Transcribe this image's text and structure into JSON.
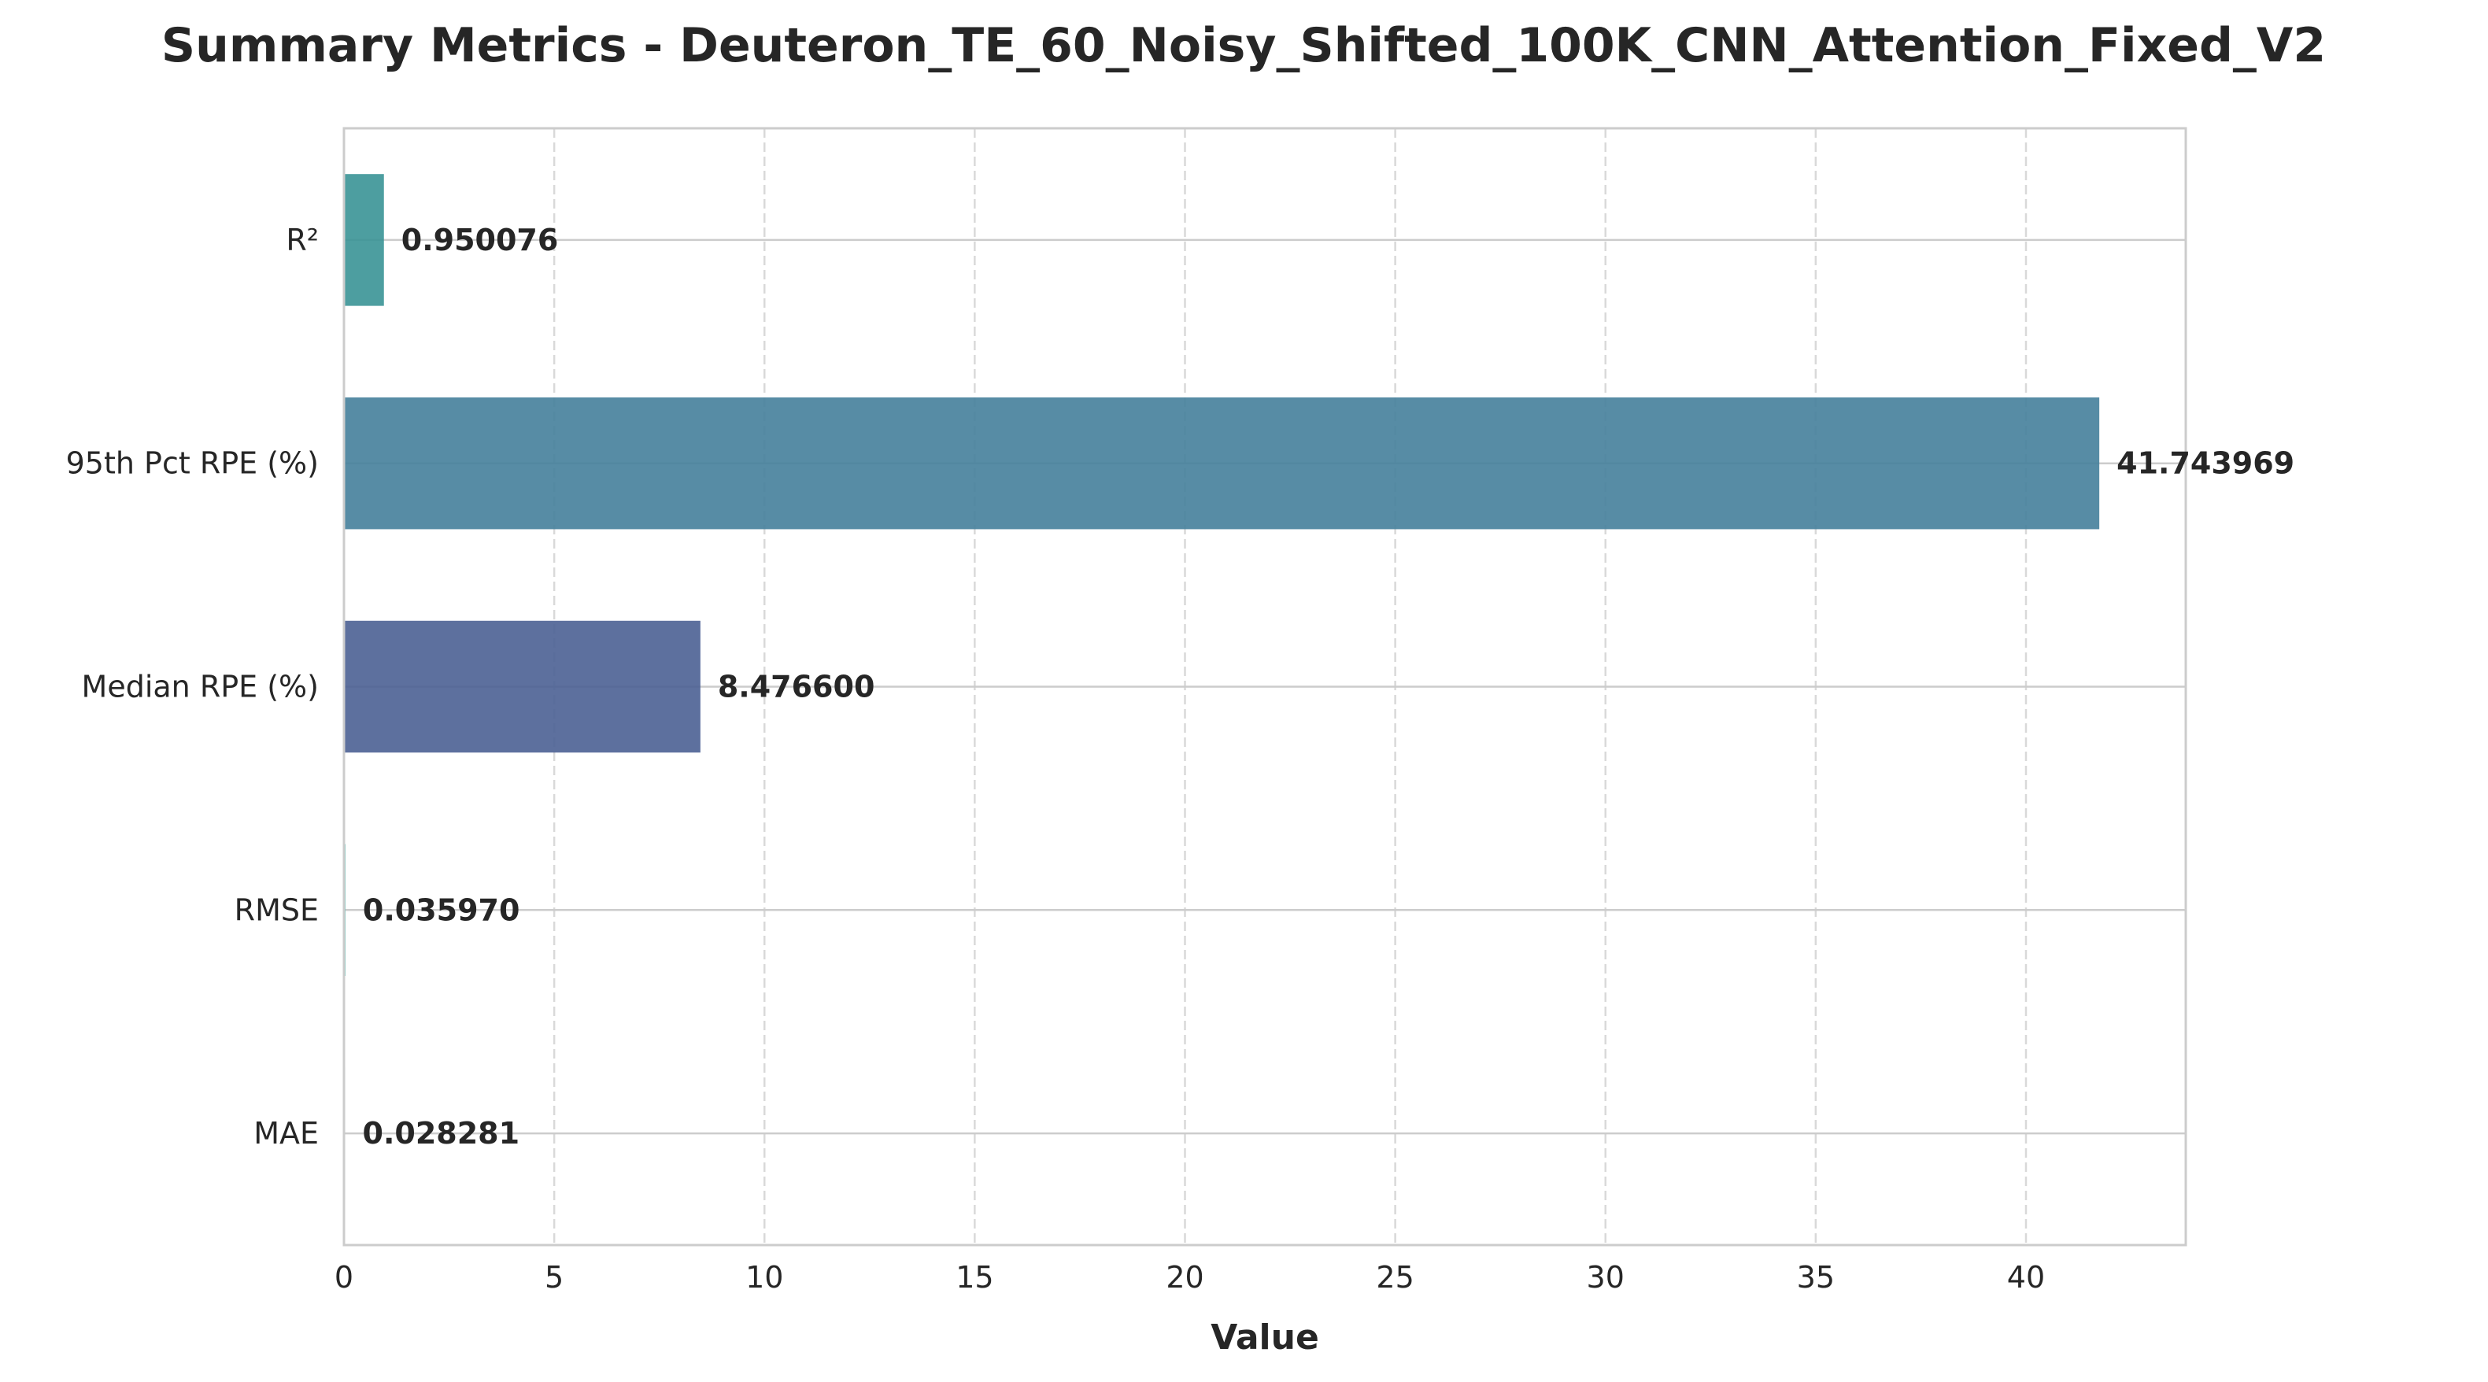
{
  "chart_data": {
    "type": "bar",
    "orientation": "horizontal",
    "title": "Summary Metrics - Deuteron_TE_60_Noisy_Shifted_100K_CNN_Attention_Fixed_V2",
    "xlabel": "Value",
    "ylabel": "",
    "xlim": [
      0,
      43.8
    ],
    "xticks": [
      0,
      5,
      10,
      15,
      20,
      25,
      30,
      35,
      40
    ],
    "categories": [
      "R²",
      "95th Pct RPE (%)",
      "Median RPE (%)",
      "RMSE",
      "MAE"
    ],
    "values": [
      0.950076,
      41.743969,
      8.4766,
      0.03597,
      0.028281
    ],
    "value_labels": [
      "0.950076",
      "41.743969",
      "8.476600",
      "0.035970",
      "0.028281"
    ],
    "colors": [
      "#3a9396",
      "#457f9b",
      "#4b6194",
      "#40b7ad",
      "#49ad8f"
    ],
    "grid": {
      "x": "dashed",
      "y": "solid"
    },
    "legend": "none"
  }
}
